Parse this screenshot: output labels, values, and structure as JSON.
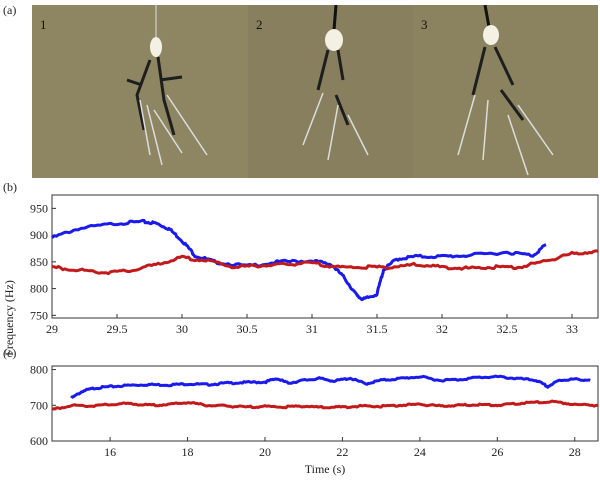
{
  "panels": {
    "a": {
      "label": "(a)",
      "frames": [
        {
          "number": "1",
          "bg": "#8e8563"
        },
        {
          "number": "2",
          "bg": "#877f5e"
        },
        {
          "number": "3",
          "bg": "#8b8360"
        }
      ]
    },
    "b": {
      "label": "(b)"
    },
    "c": {
      "label": "(c)"
    }
  },
  "shared_ylabel": "Frequency (Hz)",
  "chart_data": [
    {
      "panel": "b",
      "type": "line",
      "xlabel": "",
      "ylabel": "Frequency (Hz)",
      "xlim": [
        29,
        33.2
      ],
      "ylim": [
        745,
        975
      ],
      "xticks": [
        29,
        29.5,
        30,
        30.5,
        31,
        31.5,
        32,
        32.5,
        33
      ],
      "xtick_labels": [
        "29",
        "29.5",
        "30",
        "30.5",
        "31",
        "31.5",
        "32",
        "32.5",
        "33"
      ],
      "yticks": [
        750,
        800,
        850,
        900,
        950
      ],
      "ytick_labels": [
        "750",
        "800",
        "850",
        "900",
        "950"
      ],
      "grid": false,
      "series": [
        {
          "color": "#1a1aee",
          "x": [
            29.0,
            29.2,
            29.5,
            29.7,
            29.8,
            29.9,
            30.0,
            30.1,
            30.25,
            30.5,
            30.75,
            31.0,
            31.15,
            31.25,
            31.35,
            31.4,
            31.5,
            31.55,
            31.65,
            31.8,
            32.0,
            32.2,
            32.5,
            32.7,
            32.8
          ],
          "y": [
            895,
            912,
            922,
            925,
            922,
            912,
            890,
            862,
            850,
            842,
            850,
            852,
            845,
            820,
            785,
            780,
            790,
            835,
            855,
            860,
            860,
            862,
            868,
            862,
            882
          ]
        },
        {
          "color": "#c21a1a",
          "x": [
            29.0,
            29.2,
            29.4,
            29.6,
            29.8,
            30.0,
            30.2,
            30.4,
            30.6,
            30.8,
            31.0,
            31.2,
            31.4,
            31.6,
            31.8,
            32.0,
            32.2,
            32.4,
            32.6,
            32.8,
            33.0,
            33.2
          ],
          "y": [
            840,
            835,
            830,
            833,
            845,
            858,
            852,
            840,
            843,
            845,
            848,
            840,
            840,
            840,
            845,
            840,
            838,
            840,
            840,
            852,
            865,
            870
          ]
        }
      ]
    },
    {
      "panel": "c",
      "type": "line",
      "xlabel": "Time (s)",
      "ylabel": "",
      "xlim": [
        14.5,
        28.6
      ],
      "ylim": [
        600,
        810
      ],
      "xticks": [
        16,
        18,
        20,
        22,
        24,
        26,
        28
      ],
      "xtick_labels": [
        "16",
        "18",
        "20",
        "22",
        "24",
        "26",
        "28"
      ],
      "yticks": [
        600,
        700,
        800
      ],
      "ytick_labels": [
        "600",
        "700",
        "800"
      ],
      "grid": false,
      "series": [
        {
          "color": "#1a1aee",
          "x": [
            15.0,
            15.3,
            15.6,
            16.0,
            16.5,
            17.0,
            17.5,
            18.0,
            18.5,
            19.0,
            19.5,
            20.0,
            20.3,
            20.6,
            21.0,
            21.4,
            21.8,
            22.2,
            22.6,
            23.0,
            23.5,
            24.0,
            24.5,
            25.0,
            25.5,
            26.0,
            26.5,
            27.0,
            27.3,
            27.6,
            28.0,
            28.4
          ],
          "y": [
            720,
            740,
            748,
            752,
            756,
            758,
            757,
            760,
            758,
            762,
            764,
            765,
            775,
            762,
            770,
            775,
            768,
            776,
            760,
            770,
            775,
            780,
            770,
            772,
            778,
            780,
            775,
            770,
            752,
            770,
            773,
            770
          ]
        },
        {
          "color": "#c21a1a",
          "x": [
            14.5,
            15.0,
            15.5,
            16.0,
            16.5,
            17.0,
            17.5,
            18.0,
            18.5,
            19.0,
            19.5,
            20.0,
            20.5,
            21.0,
            21.5,
            22.0,
            22.5,
            23.0,
            23.5,
            24.0,
            24.5,
            25.0,
            25.5,
            26.0,
            26.5,
            27.0,
            27.5,
            28.0,
            28.6
          ],
          "y": [
            688,
            700,
            698,
            702,
            705,
            700,
            702,
            708,
            700,
            698,
            695,
            697,
            695,
            698,
            694,
            695,
            698,
            697,
            700,
            703,
            698,
            700,
            702,
            700,
            705,
            708,
            710,
            702,
            700
          ]
        }
      ]
    }
  ]
}
